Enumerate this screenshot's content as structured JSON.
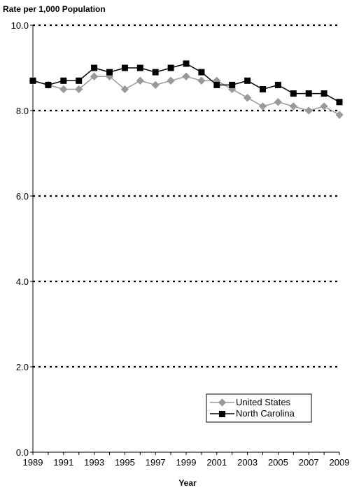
{
  "chart_data": {
    "type": "line",
    "ylabel": "Rate per 1,000 Population",
    "xlabel": "Year",
    "ylim": [
      0,
      10
    ],
    "yticks": [
      "0.0",
      "2.0",
      "4.0",
      "6.0",
      "8.0",
      "10.0"
    ],
    "grid": "horizontal-dotted",
    "legend_position": "bottom-right",
    "x": [
      1989,
      1990,
      1991,
      1992,
      1993,
      1994,
      1995,
      1996,
      1997,
      1998,
      1999,
      2000,
      2001,
      2002,
      2003,
      2004,
      2005,
      2006,
      2007,
      2008,
      2009
    ],
    "xtick_labels": [
      "1989",
      "1991",
      "1993",
      "1995",
      "1997",
      "1999",
      "2001",
      "2003",
      "2005",
      "2007",
      "2009"
    ],
    "series": [
      {
        "name": "United States",
        "marker": "diamond",
        "color": "#999999",
        "values": [
          8.7,
          8.6,
          8.5,
          8.5,
          8.8,
          8.8,
          8.5,
          8.7,
          8.6,
          8.7,
          8.8,
          8.7,
          8.7,
          8.5,
          8.3,
          8.1,
          8.2,
          8.1,
          8.0,
          8.1,
          7.9
        ]
      },
      {
        "name": "North Carolina",
        "marker": "square",
        "color": "#000000",
        "values": [
          8.7,
          8.6,
          8.7,
          8.7,
          9.0,
          8.9,
          9.0,
          9.0,
          8.9,
          9.0,
          9.1,
          8.9,
          8.6,
          8.6,
          8.7,
          8.5,
          8.6,
          8.4,
          8.4,
          8.4,
          8.2
        ]
      }
    ]
  }
}
